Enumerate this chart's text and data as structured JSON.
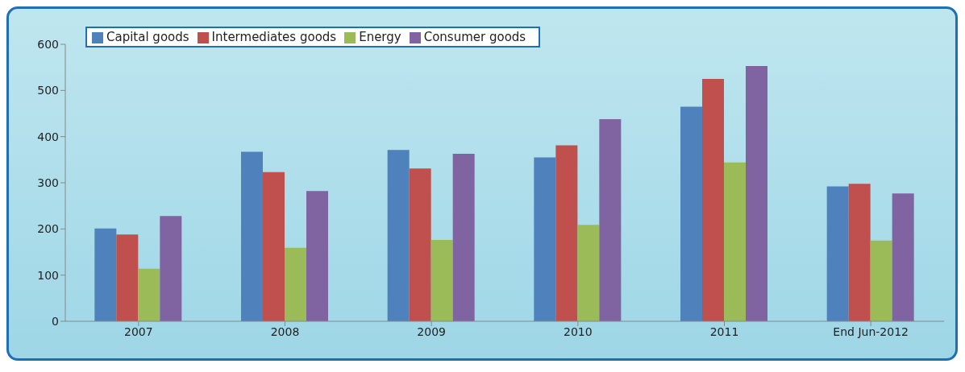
{
  "chart_data": {
    "type": "bar",
    "categories": [
      "2007",
      "2008",
      "2009",
      "2010",
      "2011",
      "End Jun-2012"
    ],
    "series": [
      {
        "name": "Capital goods",
        "color": "#4f81bd",
        "values": [
          201,
          367,
          371,
          355,
          465,
          292
        ]
      },
      {
        "name": "Intermediates goods",
        "color": "#c0504d",
        "values": [
          188,
          323,
          331,
          381,
          525,
          298
        ]
      },
      {
        "name": "Energy",
        "color": "#9bbb59",
        "values": [
          114,
          159,
          176,
          209,
          344,
          175
        ]
      },
      {
        "name": "Consumer goods",
        "color": "#8064a2",
        "values": [
          228,
          282,
          363,
          438,
          553,
          277
        ]
      }
    ],
    "ylim": [
      0,
      600
    ],
    "yticks": [
      0,
      100,
      200,
      300,
      400,
      500,
      600
    ],
    "grid": false,
    "legend": "top left"
  }
}
